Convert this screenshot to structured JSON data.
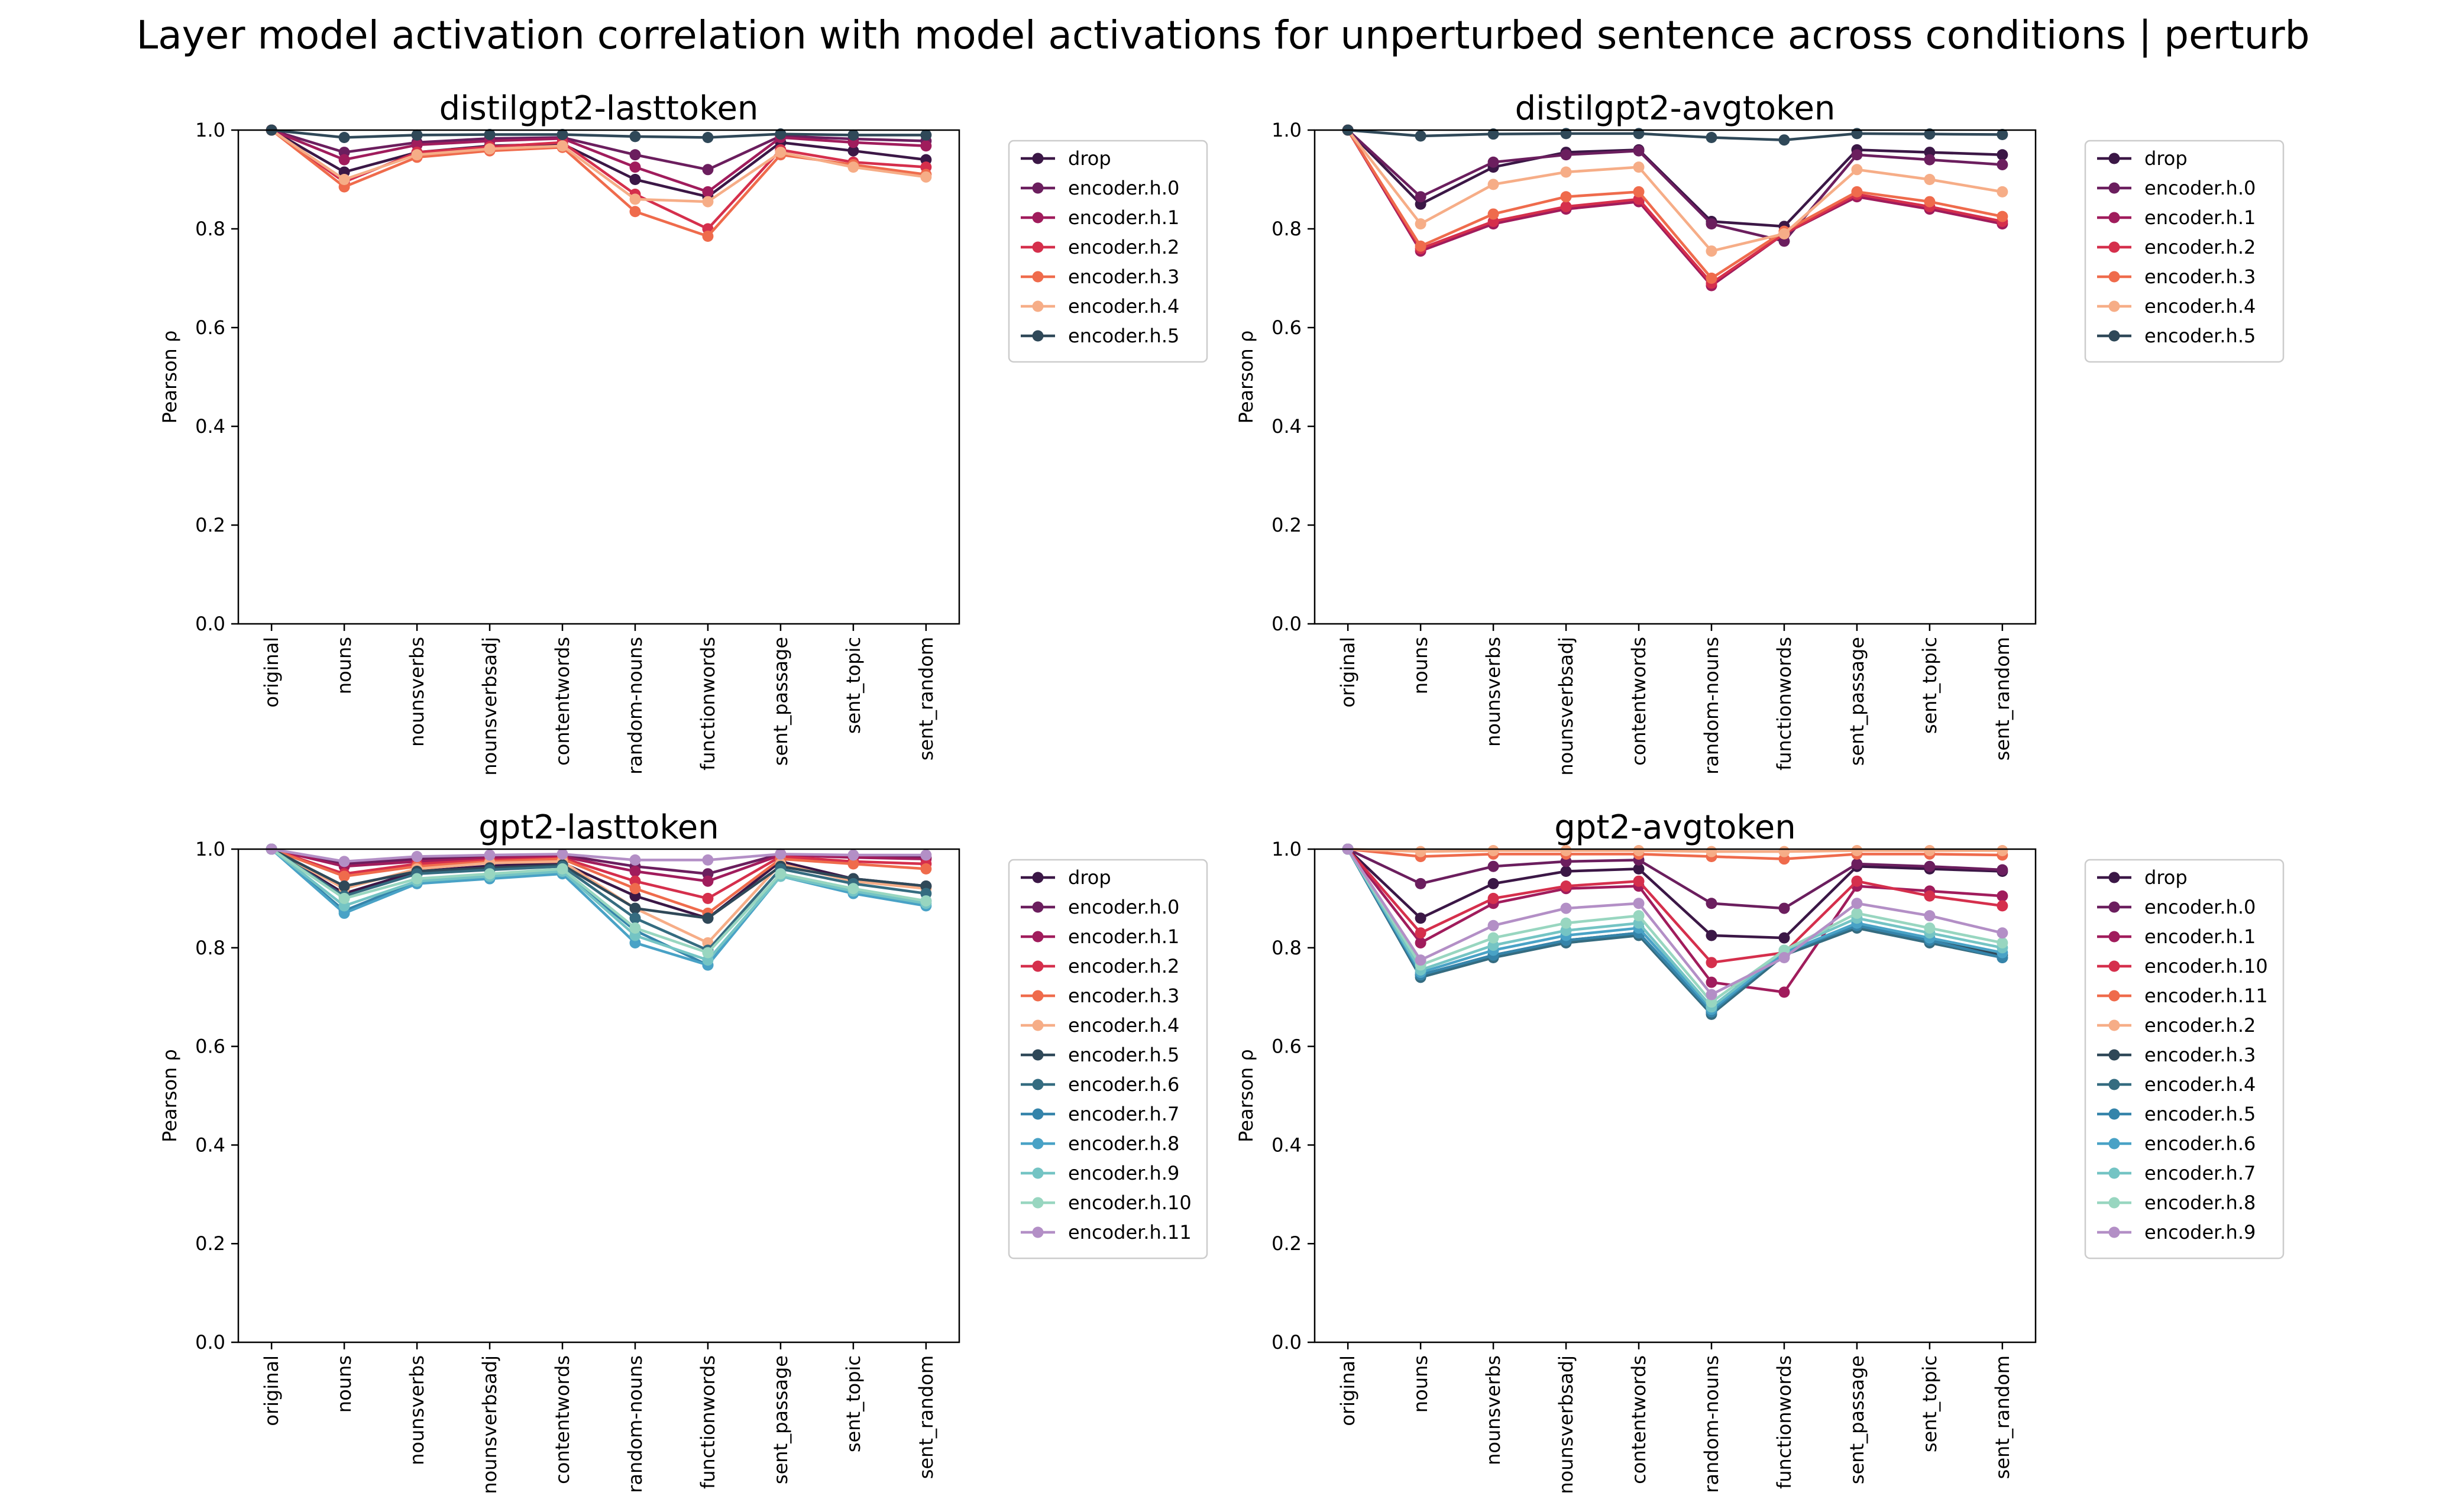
{
  "title": "Layer model activation correlation with model activations for unperturbed sentence across conditions | perturb",
  "chart_data": [
    {
      "type": "line",
      "title": "distilgpt2-lasttoken",
      "ylabel": "Pearson ρ",
      "ylim": [
        0,
        1
      ],
      "yticks": [
        "0.0",
        "0.2",
        "0.4",
        "0.6",
        "0.8",
        "1.0"
      ],
      "categories": [
        "original",
        "nouns",
        "nounsverbs",
        "nounsverbsadj",
        "contentwords",
        "random-nouns",
        "functionwords",
        "sent_passage",
        "sent_topic",
        "sent_random"
      ],
      "legend_position": "outside-right",
      "series": [
        {
          "name": "drop",
          "color": "#3b1746",
          "values": [
            1.0,
            0.915,
            0.955,
            0.968,
            0.972,
            0.9,
            0.865,
            0.975,
            0.958,
            0.94
          ]
        },
        {
          "name": "encoder.h.0",
          "color": "#6b1e5e",
          "values": [
            1.0,
            0.955,
            0.975,
            0.983,
            0.985,
            0.95,
            0.92,
            0.988,
            0.982,
            0.978
          ]
        },
        {
          "name": "encoder.h.1",
          "color": "#a01c5c",
          "values": [
            1.0,
            0.94,
            0.97,
            0.978,
            0.983,
            0.925,
            0.875,
            0.985,
            0.975,
            0.968
          ]
        },
        {
          "name": "encoder.h.2",
          "color": "#d52f4c",
          "values": [
            1.0,
            0.895,
            0.955,
            0.966,
            0.975,
            0.87,
            0.8,
            0.96,
            0.935,
            0.925
          ]
        },
        {
          "name": "encoder.h.3",
          "color": "#ef6b4c",
          "values": [
            1.0,
            0.885,
            0.945,
            0.958,
            0.965,
            0.835,
            0.785,
            0.95,
            0.93,
            0.91
          ]
        },
        {
          "name": "encoder.h.4",
          "color": "#f6ad87",
          "values": [
            1.0,
            0.9,
            0.95,
            0.962,
            0.968,
            0.86,
            0.855,
            0.955,
            0.925,
            0.905
          ]
        },
        {
          "name": "encoder.h.5",
          "color": "#2f4858",
          "values": [
            1.0,
            0.985,
            0.99,
            0.991,
            0.991,
            0.987,
            0.985,
            0.992,
            0.99,
            0.99
          ]
        }
      ]
    },
    {
      "type": "line",
      "title": "distilgpt2-avgtoken",
      "ylabel": "Pearson ρ",
      "ylim": [
        0,
        1
      ],
      "yticks": [
        "0.0",
        "0.2",
        "0.4",
        "0.6",
        "0.8",
        "1.0"
      ],
      "categories": [
        "original",
        "nouns",
        "nounsverbs",
        "nounsverbsadj",
        "contentwords",
        "random-nouns",
        "functionwords",
        "sent_passage",
        "sent_topic",
        "sent_random"
      ],
      "legend_position": "outside-right",
      "series": [
        {
          "name": "drop",
          "color": "#3b1746",
          "values": [
            1.0,
            0.85,
            0.925,
            0.955,
            0.96,
            0.815,
            0.805,
            0.96,
            0.955,
            0.95
          ]
        },
        {
          "name": "encoder.h.0",
          "color": "#6b1e5e",
          "values": [
            1.0,
            0.865,
            0.935,
            0.95,
            0.958,
            0.81,
            0.775,
            0.95,
            0.94,
            0.93
          ]
        },
        {
          "name": "encoder.h.1",
          "color": "#a01c5c",
          "values": [
            1.0,
            0.755,
            0.81,
            0.84,
            0.855,
            0.685,
            0.79,
            0.865,
            0.84,
            0.81
          ]
        },
        {
          "name": "encoder.h.2",
          "color": "#d52f4c",
          "values": [
            1.0,
            0.76,
            0.815,
            0.845,
            0.86,
            0.69,
            0.79,
            0.87,
            0.845,
            0.815
          ]
        },
        {
          "name": "encoder.h.3",
          "color": "#ef6b4c",
          "values": [
            1.0,
            0.765,
            0.83,
            0.865,
            0.875,
            0.7,
            0.795,
            0.875,
            0.855,
            0.825
          ]
        },
        {
          "name": "encoder.h.4",
          "color": "#f6ad87",
          "values": [
            1.0,
            0.81,
            0.89,
            0.915,
            0.925,
            0.755,
            0.79,
            0.92,
            0.9,
            0.875
          ]
        },
        {
          "name": "encoder.h.5",
          "color": "#2f4858",
          "values": [
            1.0,
            0.988,
            0.992,
            0.993,
            0.993,
            0.985,
            0.98,
            0.993,
            0.992,
            0.991
          ]
        }
      ]
    },
    {
      "type": "line",
      "title": "gpt2-lasttoken",
      "ylabel": "Pearson ρ",
      "ylim": [
        0,
        1
      ],
      "yticks": [
        "0.0",
        "0.2",
        "0.4",
        "0.6",
        "0.8",
        "1.0"
      ],
      "categories": [
        "original",
        "nouns",
        "nounsverbs",
        "nounsverbsadj",
        "contentwords",
        "random-nouns",
        "functionwords",
        "sent_passage",
        "sent_topic",
        "sent_random"
      ],
      "legend_position": "outside-right",
      "series": [
        {
          "name": "drop",
          "color": "#3b1746",
          "values": [
            1.0,
            0.91,
            0.955,
            0.966,
            0.972,
            0.905,
            0.86,
            0.975,
            0.94,
            0.925
          ]
        },
        {
          "name": "encoder.h.0",
          "color": "#6b1e5e",
          "values": [
            1.0,
            0.97,
            0.98,
            0.985,
            0.988,
            0.965,
            0.95,
            0.99,
            0.985,
            0.983
          ]
        },
        {
          "name": "encoder.h.1",
          "color": "#a01c5c",
          "values": [
            1.0,
            0.965,
            0.975,
            0.982,
            0.985,
            0.955,
            0.935,
            0.988,
            0.983,
            0.98
          ]
        },
        {
          "name": "encoder.h.2",
          "color": "#d52f4c",
          "values": [
            1.0,
            0.95,
            0.97,
            0.978,
            0.982,
            0.935,
            0.9,
            0.985,
            0.975,
            0.97
          ]
        },
        {
          "name": "encoder.h.3",
          "color": "#ef6b4c",
          "values": [
            1.0,
            0.945,
            0.965,
            0.975,
            0.98,
            0.92,
            0.87,
            0.98,
            0.97,
            0.96
          ]
        },
        {
          "name": "encoder.h.4",
          "color": "#f6ad87",
          "values": [
            1.0,
            0.92,
            0.96,
            0.972,
            0.975,
            0.88,
            0.81,
            0.97,
            0.935,
            0.92
          ]
        },
        {
          "name": "encoder.h.5",
          "color": "#2f4858",
          "values": [
            1.0,
            0.925,
            0.955,
            0.962,
            0.968,
            0.88,
            0.86,
            0.965,
            0.94,
            0.925
          ]
        },
        {
          "name": "encoder.h.6",
          "color": "#356c80",
          "values": [
            1.0,
            0.905,
            0.95,
            0.958,
            0.965,
            0.86,
            0.795,
            0.96,
            0.93,
            0.91
          ]
        },
        {
          "name": "encoder.h.7",
          "color": "#3584aa",
          "values": [
            1.0,
            0.875,
            0.935,
            0.945,
            0.955,
            0.835,
            0.765,
            0.95,
            0.915,
            0.895
          ]
        },
        {
          "name": "encoder.h.8",
          "color": "#49a2c6",
          "values": [
            1.0,
            0.87,
            0.93,
            0.94,
            0.95,
            0.81,
            0.765,
            0.945,
            0.91,
            0.885
          ]
        },
        {
          "name": "encoder.h.9",
          "color": "#74c4c4",
          "values": [
            1.0,
            0.885,
            0.935,
            0.945,
            0.955,
            0.825,
            0.775,
            0.945,
            0.915,
            0.89
          ]
        },
        {
          "name": "encoder.h.10",
          "color": "#98d6c0",
          "values": [
            1.0,
            0.9,
            0.94,
            0.95,
            0.96,
            0.84,
            0.79,
            0.95,
            0.92,
            0.895
          ]
        },
        {
          "name": "encoder.h.11",
          "color": "#b38fc6",
          "values": [
            1.0,
            0.975,
            0.985,
            0.988,
            0.99,
            0.978,
            0.978,
            0.99,
            0.988,
            0.988
          ]
        }
      ]
    },
    {
      "type": "line",
      "title": "gpt2-avgtoken",
      "ylabel": "Pearson ρ",
      "ylim": [
        0,
        1
      ],
      "yticks": [
        "0.0",
        "0.2",
        "0.4",
        "0.6",
        "0.8",
        "1.0"
      ],
      "categories": [
        "original",
        "nouns",
        "nounsverbs",
        "nounsverbsadj",
        "contentwords",
        "random-nouns",
        "functionwords",
        "sent_passage",
        "sent_topic",
        "sent_random"
      ],
      "legend_position": "outside-right",
      "series": [
        {
          "name": "drop",
          "color": "#3b1746",
          "values": [
            1.0,
            0.86,
            0.93,
            0.955,
            0.96,
            0.825,
            0.82,
            0.965,
            0.96,
            0.955
          ]
        },
        {
          "name": "encoder.h.0",
          "color": "#6b1e5e",
          "values": [
            1.0,
            0.93,
            0.965,
            0.975,
            0.978,
            0.89,
            0.88,
            0.97,
            0.965,
            0.958
          ]
        },
        {
          "name": "encoder.h.1",
          "color": "#a01c5c",
          "values": [
            1.0,
            0.81,
            0.89,
            0.92,
            0.925,
            0.73,
            0.71,
            0.925,
            0.915,
            0.905
          ]
        },
        {
          "name": "encoder.h.10",
          "color": "#d52f4c",
          "values": [
            1.0,
            0.83,
            0.9,
            0.925,
            0.935,
            0.77,
            0.79,
            0.935,
            0.905,
            0.885
          ]
        },
        {
          "name": "encoder.h.11",
          "color": "#ef6b4c",
          "values": [
            1.0,
            0.985,
            0.99,
            0.99,
            0.99,
            0.985,
            0.98,
            0.99,
            0.99,
            0.988
          ]
        },
        {
          "name": "encoder.h.2",
          "color": "#f6ad87",
          "values": [
            1.0,
            0.995,
            0.997,
            0.997,
            0.997,
            0.995,
            0.995,
            0.997,
            0.997,
            0.997
          ]
        },
        {
          "name": "encoder.h.3",
          "color": "#2f4858",
          "values": [
            1.0,
            0.745,
            0.785,
            0.815,
            0.83,
            0.67,
            0.79,
            0.845,
            0.815,
            0.785
          ]
        },
        {
          "name": "encoder.h.4",
          "color": "#356c80",
          "values": [
            1.0,
            0.74,
            0.78,
            0.81,
            0.825,
            0.665,
            0.785,
            0.84,
            0.81,
            0.78
          ]
        },
        {
          "name": "encoder.h.5",
          "color": "#3584aa",
          "values": [
            1.0,
            0.745,
            0.785,
            0.815,
            0.83,
            0.67,
            0.79,
            0.845,
            0.815,
            0.78
          ]
        },
        {
          "name": "encoder.h.6",
          "color": "#49a2c6",
          "values": [
            1.0,
            0.75,
            0.795,
            0.825,
            0.84,
            0.675,
            0.79,
            0.85,
            0.82,
            0.79
          ]
        },
        {
          "name": "encoder.h.7",
          "color": "#74c4c4",
          "values": [
            1.0,
            0.755,
            0.805,
            0.835,
            0.85,
            0.68,
            0.795,
            0.86,
            0.83,
            0.8
          ]
        },
        {
          "name": "encoder.h.8",
          "color": "#98d6c0",
          "values": [
            1.0,
            0.765,
            0.82,
            0.85,
            0.865,
            0.69,
            0.795,
            0.87,
            0.84,
            0.81
          ]
        },
        {
          "name": "encoder.h.9",
          "color": "#b38fc6",
          "values": [
            1.0,
            0.775,
            0.845,
            0.88,
            0.89,
            0.705,
            0.78,
            0.89,
            0.865,
            0.83
          ]
        }
      ]
    }
  ]
}
